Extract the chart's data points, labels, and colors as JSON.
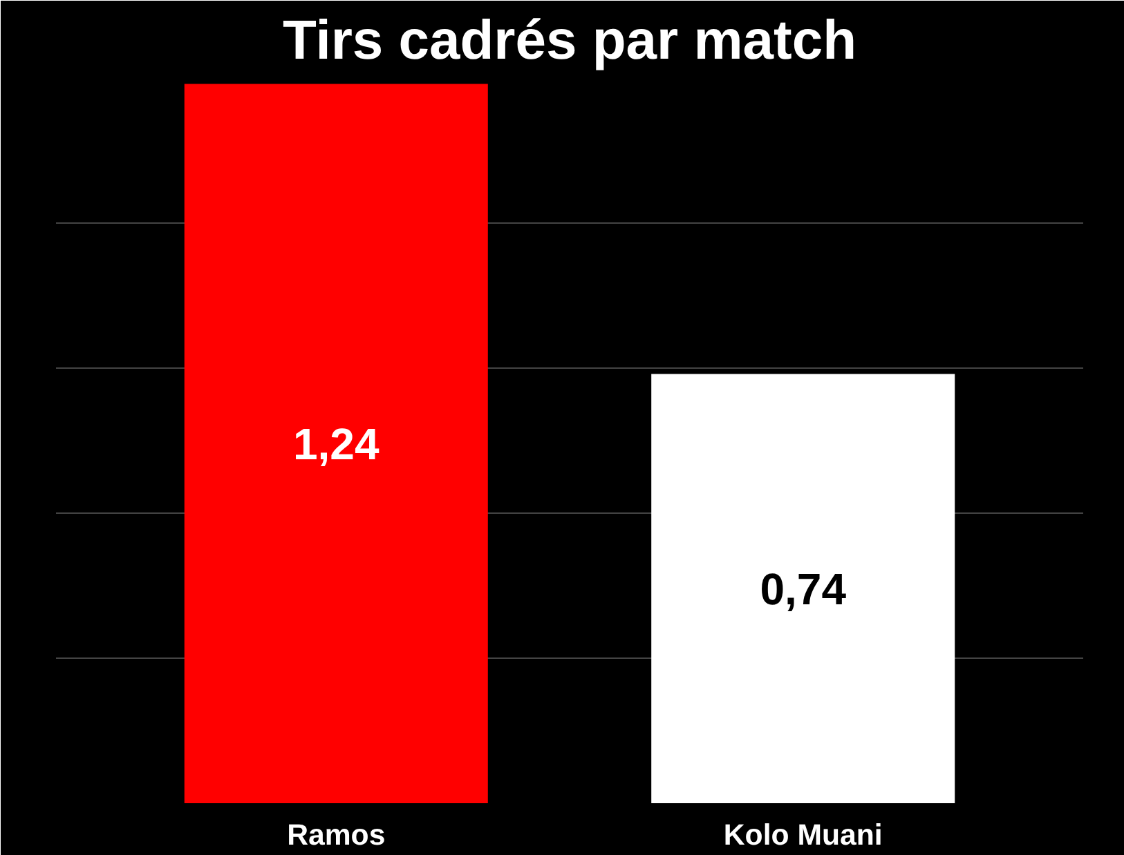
{
  "chart_data": {
    "type": "bar",
    "title": "Tirs cadrés par match",
    "categories": [
      "Ramos",
      "Kolo Muani"
    ],
    "values": [
      1.24,
      0.74
    ],
    "colors": [
      "#ff0000",
      "#ffffff"
    ],
    "value_labels": [
      "1,24",
      "0,74"
    ],
    "ylim": [
      0,
      1.25
    ],
    "yticks": [
      {
        "value": 0,
        "label": null
      },
      {
        "value": 0.25,
        "label": null
      },
      {
        "value": 0.5,
        "label": null
      },
      {
        "value": 0.75,
        "label": null
      },
      {
        "value": 1.0,
        "label": null
      },
      {
        "value": 1.25,
        "label": null
      }
    ],
    "tick_labels": "x",
    "grid": "y"
  }
}
